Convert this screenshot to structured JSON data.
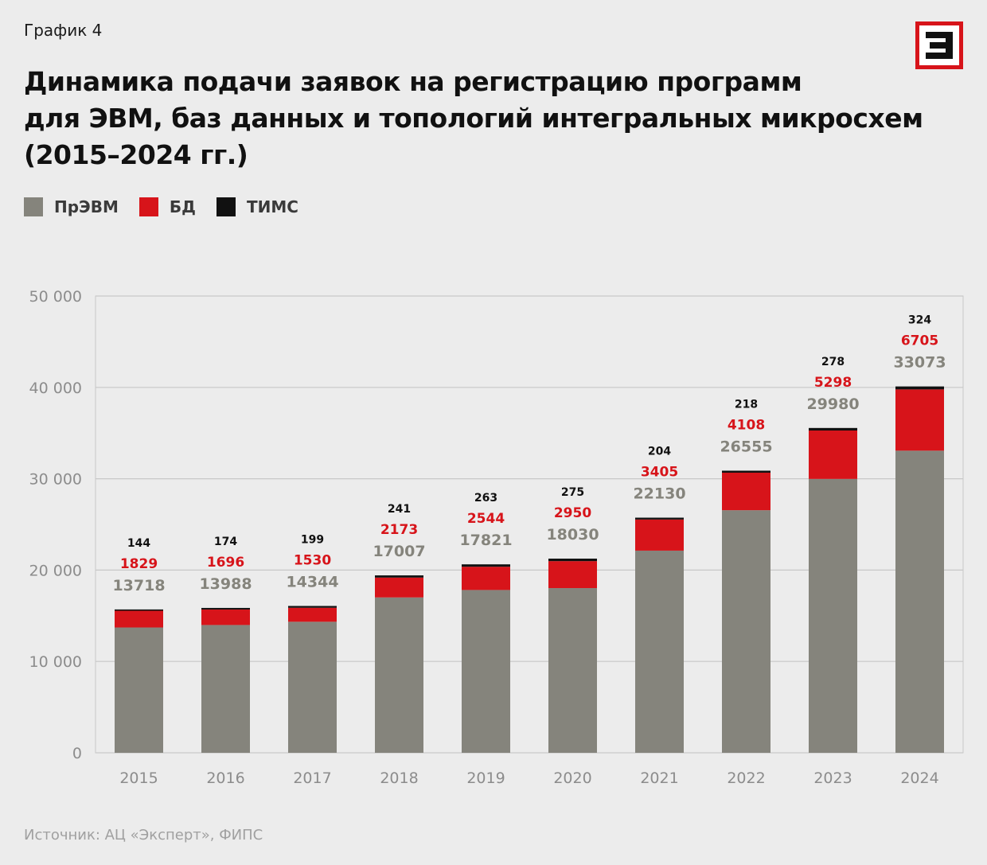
{
  "header": {
    "kicker": "График 4",
    "title_lines": [
      "Динамика подачи заявок на регистрацию программ",
      "для ЭВМ, баз данных и топологий интегральных микросхем",
      "(2015–2024 гг.)"
    ]
  },
  "legend": [
    {
      "label": "ПрЭВМ",
      "color": "#85847c"
    },
    {
      "label": "БД",
      "color": "#d7141a"
    },
    {
      "label": "ТИМС",
      "color": "#111111"
    }
  ],
  "source": "Источник: АЦ «Эксперт», ФИПС",
  "colors": {
    "accent": "#d7141a",
    "grid": "#c8c8c8",
    "axis_text": "#8c8c8c",
    "background": "#ececec"
  },
  "chart_data": {
    "type": "bar",
    "stacked": true,
    "title": "Динамика подачи заявок на регистрацию программ для ЭВМ, баз данных и топологий интегральных микросхем (2015–2024 гг.)",
    "categories": [
      "2015",
      "2016",
      "2017",
      "2018",
      "2019",
      "2020",
      "2021",
      "2022",
      "2023",
      "2024"
    ],
    "series": [
      {
        "name": "ПрЭВМ",
        "color": "#85847c",
        "values": [
          13718,
          13988,
          14344,
          17007,
          17821,
          18030,
          22130,
          26555,
          29980,
          33073
        ]
      },
      {
        "name": "БД",
        "color": "#d7141a",
        "values": [
          1829,
          1696,
          1530,
          2173,
          2544,
          2950,
          3405,
          4108,
          5298,
          6705
        ]
      },
      {
        "name": "ТИМС",
        "color": "#111111",
        "values": [
          144,
          174,
          199,
          241,
          263,
          275,
          204,
          218,
          278,
          324
        ]
      }
    ],
    "ylim": [
      0,
      50000
    ],
    "yticks": [
      0,
      10000,
      20000,
      30000,
      40000,
      50000
    ],
    "ytick_labels": [
      "0",
      "10 000",
      "20 000",
      "30 000",
      "40 000",
      "50 000"
    ],
    "xlabel": "",
    "ylabel": "",
    "grid": true
  }
}
